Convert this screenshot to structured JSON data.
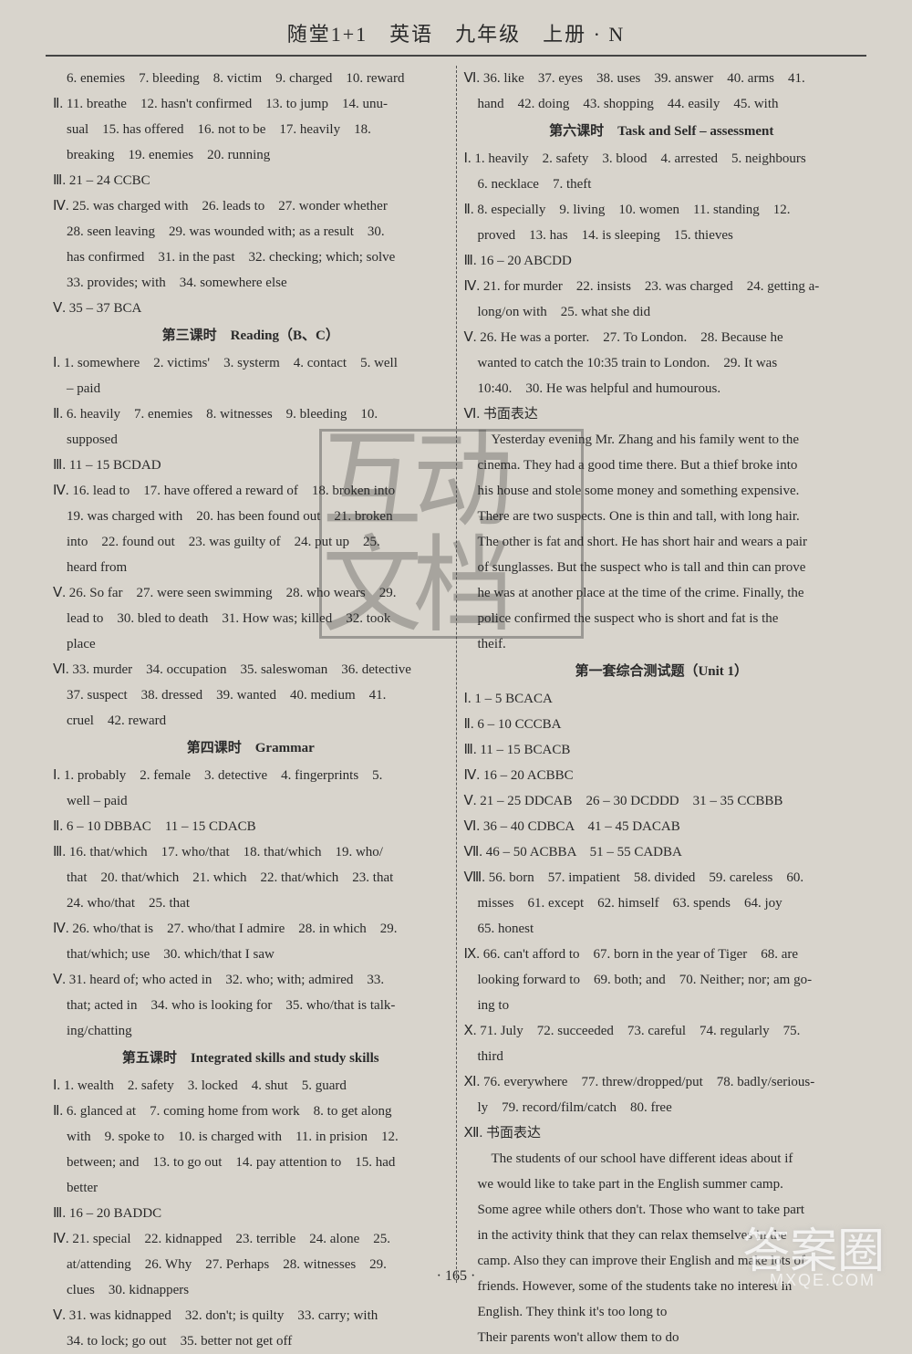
{
  "header": "随堂1+1　英语　九年级　上册 · N",
  "pageNumber": "· 165 ·",
  "watermark": "互动文档",
  "cornerWatermark": "答案圈",
  "cornerUrl": "MXQE.COM",
  "left": [
    {
      "t": "line",
      "v": "　6. enemies　7. bleeding　8. victim　9. charged　10. reward"
    },
    {
      "t": "line",
      "v": "Ⅱ. 11. breathe　12. hasn't confirmed　13. to jump　14. unu-"
    },
    {
      "t": "line",
      "v": "　sual　15. has offered　16. not to be　17. heavily　18."
    },
    {
      "t": "line",
      "v": "　breaking　19. enemies　20. running"
    },
    {
      "t": "line",
      "v": "Ⅲ. 21 – 24 CCBC"
    },
    {
      "t": "line",
      "v": "Ⅳ. 25. was charged with　26. leads to　27. wonder whether"
    },
    {
      "t": "line",
      "v": "　28. seen leaving　29. was wounded with; as a result　30."
    },
    {
      "t": "line",
      "v": "　has confirmed　31. in the past　32. checking; which; solve"
    },
    {
      "t": "line",
      "v": "　33. provides; with　34. somewhere else"
    },
    {
      "t": "line",
      "v": "Ⅴ. 35 – 37 BCA"
    },
    {
      "t": "title",
      "v": "第三课时　Reading（B、C）"
    },
    {
      "t": "line",
      "v": "Ⅰ. 1. somewhere　2. victims'　3. systerm　4. contact　5. well"
    },
    {
      "t": "line",
      "v": "　– paid"
    },
    {
      "t": "line",
      "v": "Ⅱ. 6. heavily　7. enemies　8. witnesses　9. bleeding　10."
    },
    {
      "t": "line",
      "v": "　supposed"
    },
    {
      "t": "line",
      "v": "Ⅲ. 11 – 15 BCDAD"
    },
    {
      "t": "line",
      "v": "Ⅳ. 16. lead to　17. have offered a reward of　18. broken into"
    },
    {
      "t": "line",
      "v": "　19. was charged with　20. has been found out　21. broken"
    },
    {
      "t": "line",
      "v": "　into　22. found out　23. was guilty of　24. put up　25."
    },
    {
      "t": "line",
      "v": "　heard from"
    },
    {
      "t": "line",
      "v": "Ⅴ. 26. So far　27. were seen swimming　28. who wears　29."
    },
    {
      "t": "line",
      "v": "　lead to　30. bled to death　31. How was; killed　32. took"
    },
    {
      "t": "line",
      "v": "　place"
    },
    {
      "t": "line",
      "v": "Ⅵ. 33. murder　34. occupation　35. saleswoman　36. detective"
    },
    {
      "t": "line",
      "v": "　37. suspect　38. dressed　39. wanted　40. medium　41."
    },
    {
      "t": "line",
      "v": "　cruel　42. reward"
    },
    {
      "t": "title",
      "v": "第四课时　Grammar"
    },
    {
      "t": "line",
      "v": "Ⅰ. 1. probably　2. female　3. detective　4. fingerprints　5."
    },
    {
      "t": "line",
      "v": "　well – paid"
    },
    {
      "t": "line",
      "v": "Ⅱ. 6 – 10 DBBAC　11 – 15 CDACB"
    },
    {
      "t": "line",
      "v": "Ⅲ. 16. that/which　17. who/that　18. that/which　19. who/"
    },
    {
      "t": "line",
      "v": "　that　20. that/which　21. which　22. that/which　23. that"
    },
    {
      "t": "line",
      "v": "　24. who/that　25. that"
    },
    {
      "t": "line",
      "v": "Ⅳ. 26. who/that is　27. who/that I admire　28. in which　29."
    },
    {
      "t": "line",
      "v": "　that/which; use　30. which/that I saw"
    },
    {
      "t": "line",
      "v": "Ⅴ. 31. heard of; who acted in　32. who; with; admired　33."
    },
    {
      "t": "line",
      "v": "　that; acted in　34. who is looking for　35. who/that is talk-"
    },
    {
      "t": "line",
      "v": "　ing/chatting"
    },
    {
      "t": "title",
      "v": "第五课时　Integrated skills and study skills"
    },
    {
      "t": "line",
      "v": "Ⅰ. 1. wealth　2. safety　3. locked　4. shut　5. guard"
    },
    {
      "t": "line",
      "v": "Ⅱ. 6. glanced at　7. coming home from work　8. to get along"
    },
    {
      "t": "line",
      "v": "　with　9. spoke to　10. is charged with　11. in prision　12."
    },
    {
      "t": "line",
      "v": "　between; and　13. to go out　14. pay attention to　15. had"
    },
    {
      "t": "line",
      "v": "　better"
    },
    {
      "t": "line",
      "v": "Ⅲ. 16 – 20 BADDC"
    },
    {
      "t": "line",
      "v": "Ⅳ. 21. special　22. kidnapped　23. terrible　24. alone　25."
    },
    {
      "t": "line",
      "v": "　at/attending　26. Why　27. Perhaps　28. witnesses　29."
    },
    {
      "t": "line",
      "v": "　clues　30. kidnappers"
    },
    {
      "t": "line",
      "v": "Ⅴ. 31. was kidnapped　32. don't; is quilty　33. carry; with"
    },
    {
      "t": "line",
      "v": "　34. to lock; go out　35. better not get off"
    }
  ],
  "right": [
    {
      "t": "line",
      "v": "Ⅵ. 36. like　37. eyes　38. uses　39. answer　40. arms　41."
    },
    {
      "t": "line",
      "v": "　hand　42. doing　43. shopping　44. easily　45. with"
    },
    {
      "t": "title",
      "v": "第六课时　Task and Self – assessment"
    },
    {
      "t": "line",
      "v": "Ⅰ. 1. heavily　2. safety　3. blood　4. arrested　5. neighbours"
    },
    {
      "t": "line",
      "v": "　6. necklace　7. theft"
    },
    {
      "t": "line",
      "v": "Ⅱ. 8. especially　9. living　10. women　11. standing　12."
    },
    {
      "t": "line",
      "v": "　proved　13. has　14. is sleeping　15. thieves"
    },
    {
      "t": "line",
      "v": "Ⅲ. 16 – 20 ABCDD"
    },
    {
      "t": "line",
      "v": "Ⅳ. 21. for murder　22. insists　23. was charged　24. getting a-"
    },
    {
      "t": "line",
      "v": "　long/on with　25. what she did"
    },
    {
      "t": "line",
      "v": "Ⅴ. 26. He was a porter.　27. To London.　28. Because he"
    },
    {
      "t": "line",
      "v": "　wanted to catch the 10:35 train to London.　29. It was"
    },
    {
      "t": "line",
      "v": "　10:40.　30. He was helpful and humourous."
    },
    {
      "t": "line",
      "v": "Ⅵ. 书面表达"
    },
    {
      "t": "line",
      "v": "　　Yesterday evening Mr. Zhang and his family went to the"
    },
    {
      "t": "line",
      "v": "　cinema. They had a good time there. But a thief broke into"
    },
    {
      "t": "line",
      "v": "　his house and stole some money and something expensive."
    },
    {
      "t": "line",
      "v": "　There are two suspects. One is thin and tall, with long hair."
    },
    {
      "t": "line",
      "v": "　The other is fat and short. He has short hair and wears a pair"
    },
    {
      "t": "line",
      "v": "　of sunglasses. But the suspect who is tall and thin can prove"
    },
    {
      "t": "line",
      "v": "　he was at another place at the time of the crime. Finally, the"
    },
    {
      "t": "line",
      "v": "　police confirmed the suspect who is short and fat is the"
    },
    {
      "t": "line",
      "v": "　theif."
    },
    {
      "t": "title",
      "v": "第一套综合测试题（Unit 1）"
    },
    {
      "t": "line",
      "v": "Ⅰ. 1 – 5 BCACA"
    },
    {
      "t": "line",
      "v": "Ⅱ. 6 – 10 CCCBA"
    },
    {
      "t": "line",
      "v": "Ⅲ. 11 – 15 BCACB"
    },
    {
      "t": "line",
      "v": "Ⅳ. 16 – 20 ACBBC"
    },
    {
      "t": "line",
      "v": "Ⅴ. 21 – 25 DDCAB　26 – 30 DCDDD　31 – 35 CCBBB"
    },
    {
      "t": "line",
      "v": "Ⅵ. 36 – 40 CDBCA　41 – 45 DACAB"
    },
    {
      "t": "line",
      "v": "Ⅶ. 46 – 50 ACBBA　51 – 55 CADBA"
    },
    {
      "t": "line",
      "v": "Ⅷ. 56. born　57. impatient　58. divided　59. careless　60."
    },
    {
      "t": "line",
      "v": "　misses　61. except　62. himself　63. spends　64. joy"
    },
    {
      "t": "line",
      "v": "　65. honest"
    },
    {
      "t": "line",
      "v": "Ⅸ. 66. can't afford to　67. born in the year of Tiger　68. are"
    },
    {
      "t": "line",
      "v": "　looking forward to　69. both; and　70. Neither; nor; am go-"
    },
    {
      "t": "line",
      "v": "　ing to"
    },
    {
      "t": "line",
      "v": "Ⅹ. 71. July　72. succeeded　73. careful　74. regularly　75."
    },
    {
      "t": "line",
      "v": "　third"
    },
    {
      "t": "line",
      "v": "Ⅺ. 76. everywhere　77. threw/dropped/put　78. badly/serious-"
    },
    {
      "t": "line",
      "v": "　ly　79. record/film/catch　80. free"
    },
    {
      "t": "line",
      "v": "Ⅻ. 书面表达"
    },
    {
      "t": "line",
      "v": "　　The students of our school have different ideas about if"
    },
    {
      "t": "line",
      "v": "　we would like to take part in the English summer camp."
    },
    {
      "t": "line",
      "v": "　Some agree while others don't. Those who want to take part"
    },
    {
      "t": "line",
      "v": "　in the activity think that they can relax themselves in the"
    },
    {
      "t": "line",
      "v": "　camp. Also they can improve their English and make lots of"
    },
    {
      "t": "line",
      "v": "　friends. However, some of the students take no interest in"
    },
    {
      "t": "line",
      "v": "　English. They think it's too long to"
    },
    {
      "t": "line",
      "v": "　Their parents won't allow them to do"
    }
  ]
}
